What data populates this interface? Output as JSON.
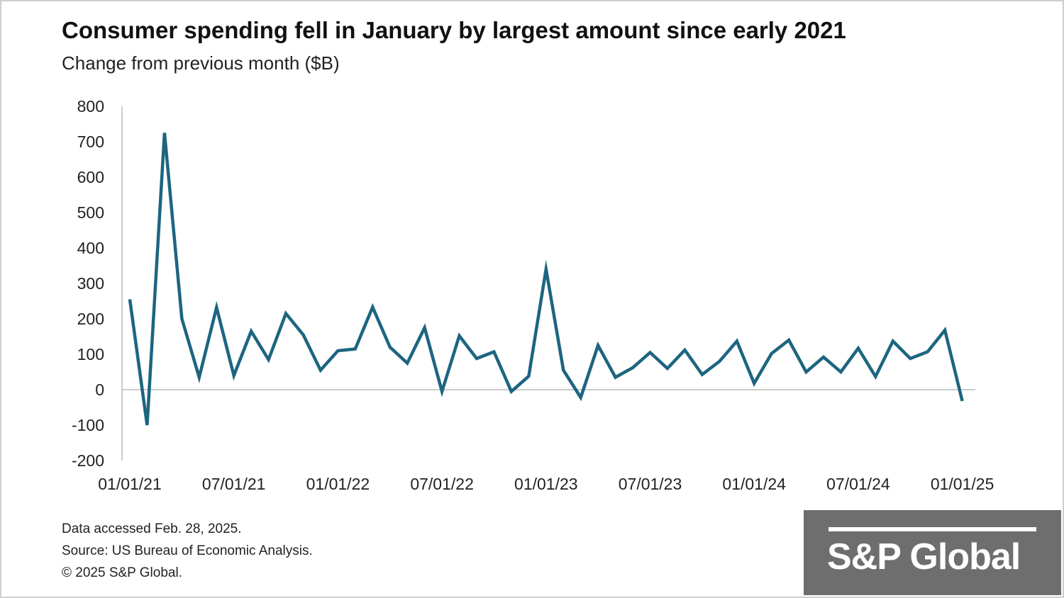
{
  "header": {
    "title": "Consumer spending fell in January by largest amount since early 2021",
    "subtitle": "Change from previous month ($B)"
  },
  "footer": {
    "line1": "Data accessed Feb. 28, 2025.",
    "line2": "Source: US Bureau of Economic Analysis.",
    "line3": "© 2025 S&P Global."
  },
  "logo": {
    "text": "S&P Global",
    "background_color": "#6e6e6e"
  },
  "colors": {
    "line": "#1d6580",
    "axis": "#cccccc"
  },
  "chart_data": {
    "type": "line",
    "title": "Consumer spending fell in January by largest amount since early 2021",
    "ylabel": "Change from previous month ($B)",
    "xlabel": "",
    "ylim": [
      -200,
      800
    ],
    "yticks": [
      800,
      700,
      600,
      500,
      400,
      300,
      200,
      100,
      0,
      -100,
      -200
    ],
    "ytick_labels": [
      "800",
      "700",
      "600",
      "500",
      "400",
      "300",
      "200",
      "100",
      "0",
      "-100",
      "-200"
    ],
    "xtick_labels": [
      "01/01/21",
      "07/01/21",
      "01/01/22",
      "07/01/22",
      "01/01/23",
      "07/01/23",
      "01/01/24",
      "07/01/24",
      "01/01/25"
    ],
    "grid": false,
    "legend": "none",
    "x": [
      "2021-01",
      "2021-02",
      "2021-03",
      "2021-04",
      "2021-05",
      "2021-06",
      "2021-07",
      "2021-08",
      "2021-09",
      "2021-10",
      "2021-11",
      "2021-12",
      "2022-01",
      "2022-02",
      "2022-03",
      "2022-04",
      "2022-05",
      "2022-06",
      "2022-07",
      "2022-08",
      "2022-09",
      "2022-10",
      "2022-11",
      "2022-12",
      "2023-01",
      "2023-02",
      "2023-03",
      "2023-04",
      "2023-05",
      "2023-06",
      "2023-07",
      "2023-08",
      "2023-09",
      "2023-10",
      "2023-11",
      "2023-12",
      "2024-01",
      "2024-02",
      "2024-03",
      "2024-04",
      "2024-05",
      "2024-06",
      "2024-07",
      "2024-08",
      "2024-09",
      "2024-10",
      "2024-11",
      "2024-12",
      "2025-01"
    ],
    "series": [
      {
        "values": [
          255,
          -100,
          725,
          200,
          35,
          232,
          40,
          165,
          85,
          215,
          155,
          55,
          110,
          115,
          233,
          120,
          75,
          175,
          -5,
          152,
          88,
          107,
          -5,
          38,
          340,
          55,
          -22,
          125,
          35,
          62,
          105,
          60,
          112,
          43,
          80,
          137,
          18,
          102,
          140,
          50,
          92,
          50,
          117,
          37,
          137,
          88,
          107,
          168,
          -32
        ]
      }
    ]
  }
}
